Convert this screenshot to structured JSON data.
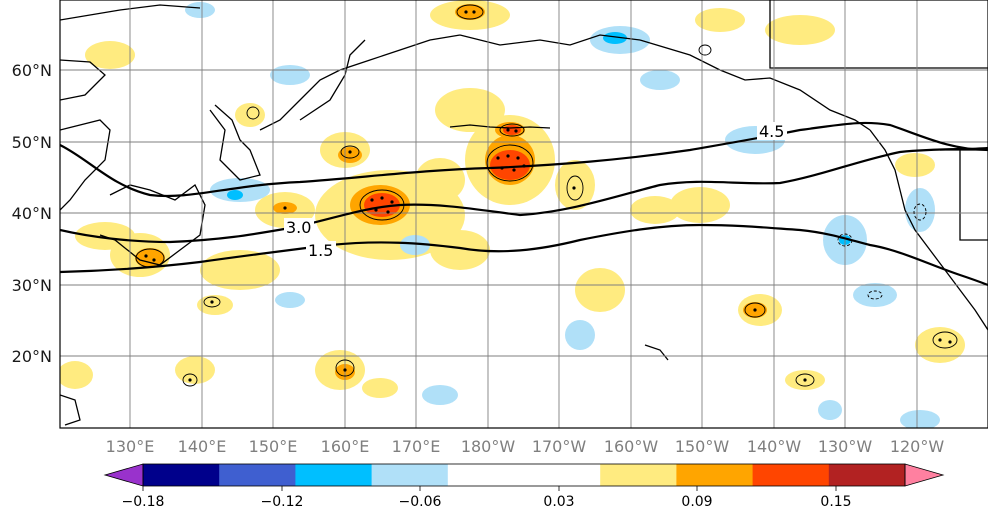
{
  "map": {
    "lat_labels": [
      "60°N",
      "50°N",
      "40°N",
      "30°N",
      "20°N"
    ],
    "lon_labels": [
      "130°E",
      "140°E",
      "150°E",
      "160°E",
      "170°E",
      "180°W",
      "170°W",
      "160°W",
      "150°W",
      "140°W",
      "130°W",
      "120°W"
    ],
    "contour_labels": [
      "4.5",
      "3.0",
      "1.5"
    ],
    "colors": {
      "tick_lat": "#1a1a1a",
      "tick_lon": "#7f7f7f",
      "coast": "#000000",
      "grid": "#7f7f7f"
    }
  },
  "colorbar": {
    "colors": [
      "#9932cc",
      "#00008b",
      "#3f5fd0",
      "#00bfff",
      "#b0e0f8",
      "#ffffff",
      "#ffffff",
      "#ffeb80",
      "#ffa500",
      "#ff4500",
      "#b22222",
      "#ff80a0"
    ],
    "tick_labels": [
      "−0.18",
      "−0.12",
      "−0.06",
      "0.03",
      "0.09",
      "0.15"
    ]
  }
}
